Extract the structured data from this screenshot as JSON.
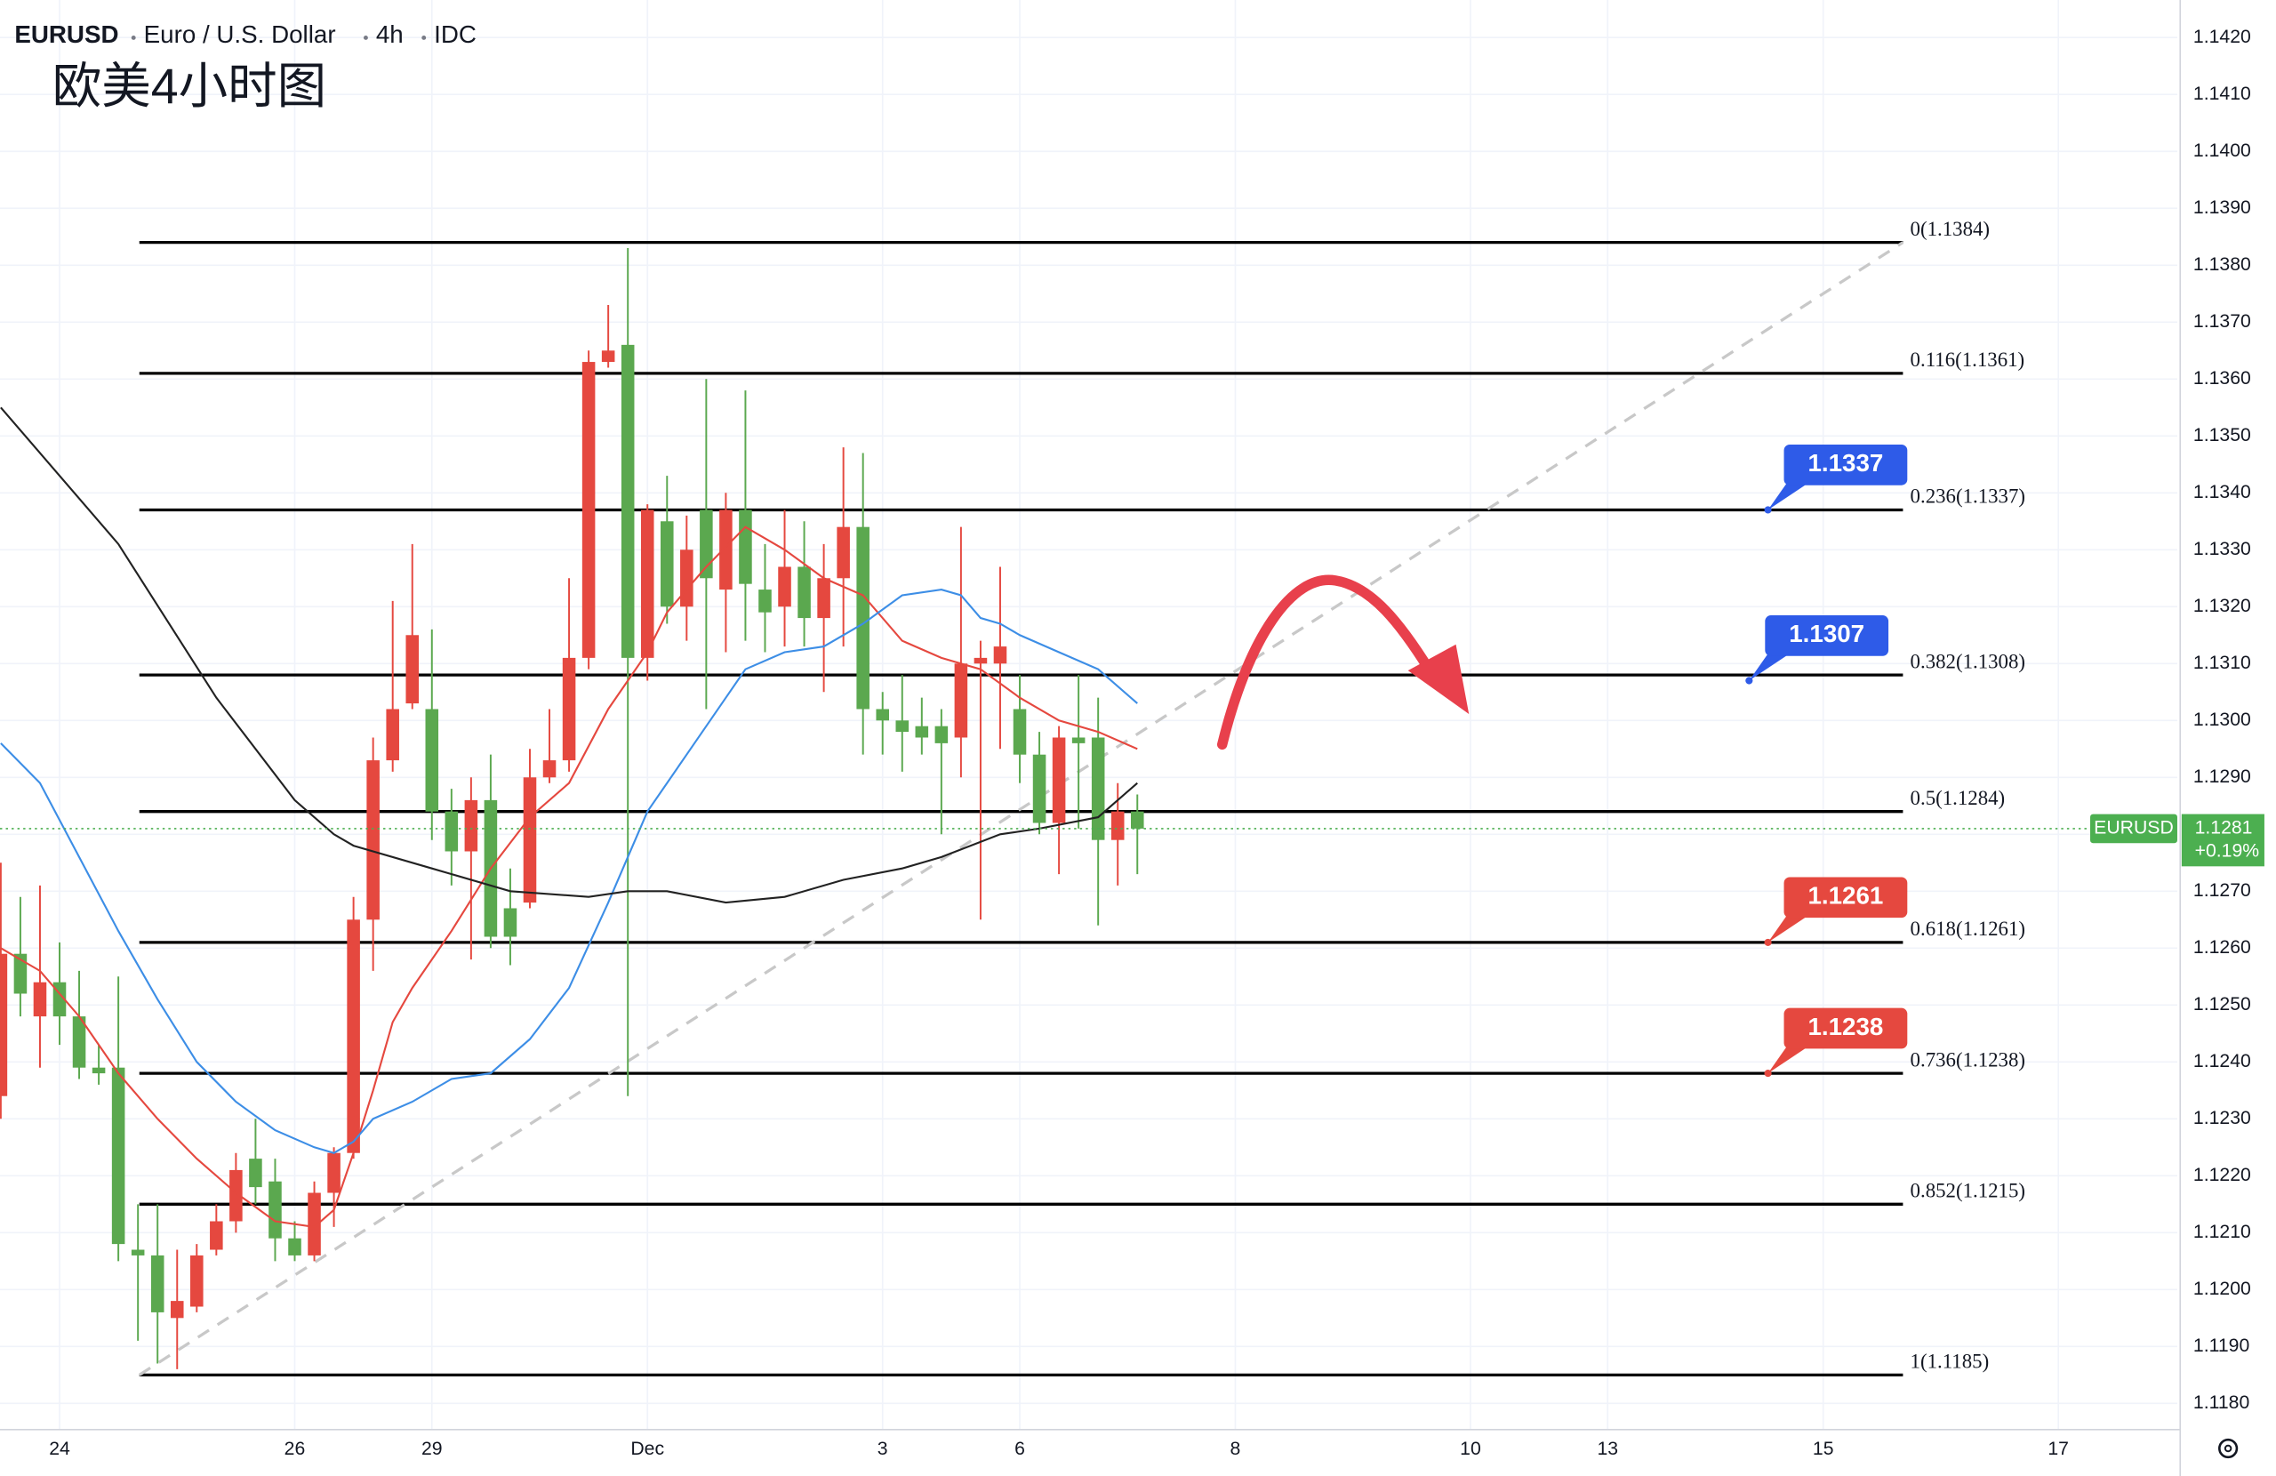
{
  "header": {
    "symbol": "EURUSD",
    "description": "Euro / U.S. Dollar",
    "interval": "4h",
    "source": "IDC",
    "title": "欧美4小时图"
  },
  "chart_data": {
    "type": "candlestick",
    "x": [
      -3,
      -2,
      -1,
      0,
      1,
      2,
      3,
      4,
      5,
      6,
      7,
      8,
      9,
      10,
      11,
      12,
      13,
      14,
      15,
      16,
      17,
      18,
      19,
      20,
      21,
      22,
      23,
      24,
      25,
      26,
      27,
      28,
      29,
      30,
      31,
      32,
      33,
      34,
      35,
      36,
      37,
      38,
      39,
      40,
      41,
      42,
      43,
      44,
      45,
      46,
      47,
      48,
      49,
      50,
      51,
      52,
      53,
      54,
      55
    ],
    "open": [
      1.1234,
      1.1259,
      1.1248,
      1.1254,
      1.1248,
      1.1239,
      1.1239,
      1.1207,
      1.1206,
      1.1195,
      1.1197,
      1.1207,
      1.1212,
      1.1223,
      1.1219,
      1.1209,
      1.1206,
      1.1217,
      1.1224,
      1.1265,
      1.1293,
      1.1303,
      1.1302,
      1.1284,
      1.1277,
      1.1286,
      1.1267,
      1.1268,
      1.129,
      1.1293,
      1.1311,
      1.1363,
      1.1366,
      1.1311,
      1.1335,
      1.132,
      1.1337,
      1.1323,
      1.1337,
      1.1323,
      1.132,
      1.1327,
      1.1318,
      1.1325,
      1.1334,
      1.1302,
      1.13,
      1.1299,
      1.1299,
      1.1297,
      1.131,
      1.131,
      1.1302,
      1.1294,
      1.1282,
      1.1297,
      1.1297,
      1.1279,
      1.1284
    ],
    "high": [
      1.1275,
      1.1269,
      1.1271,
      1.1261,
      1.1256,
      1.1243,
      1.1255,
      1.1215,
      1.1215,
      1.1207,
      1.1208,
      1.1215,
      1.1224,
      1.123,
      1.1223,
      1.1212,
      1.1219,
      1.1225,
      1.1269,
      1.1297,
      1.1321,
      1.1331,
      1.1316,
      1.1288,
      1.129,
      1.1294,
      1.1274,
      1.1295,
      1.1302,
      1.1325,
      1.1365,
      1.1373,
      1.1383,
      1.1338,
      1.1343,
      1.1336,
      1.136,
      1.134,
      1.1358,
      1.1331,
      1.1337,
      1.1335,
      1.1331,
      1.1348,
      1.1347,
      1.1305,
      1.1308,
      1.1304,
      1.1302,
      1.1334,
      1.1314,
      1.1327,
      1.1308,
      1.1298,
      1.1299,
      1.1308,
      1.1304,
      1.1289,
      1.1287
    ],
    "low": [
      1.123,
      1.1248,
      1.1239,
      1.1243,
      1.1237,
      1.1236,
      1.1205,
      1.1191,
      1.1187,
      1.1186,
      1.1196,
      1.1206,
      1.121,
      1.1215,
      1.1205,
      1.1205,
      1.1205,
      1.1211,
      1.1223,
      1.1256,
      1.1291,
      1.1302,
      1.1279,
      1.1271,
      1.1258,
      1.126,
      1.1257,
      1.1267,
      1.1289,
      1.1291,
      1.1309,
      1.1362,
      1.1234,
      1.1307,
      1.1317,
      1.1314,
      1.1302,
      1.1312,
      1.1314,
      1.1312,
      1.1313,
      1.1313,
      1.1305,
      1.1313,
      1.1294,
      1.1294,
      1.1291,
      1.1294,
      1.128,
      1.129,
      1.1265,
      1.1295,
      1.1289,
      1.128,
      1.1273,
      1.1281,
      1.1264,
      1.1271,
      1.1273
    ],
    "close": [
      1.1259,
      1.1252,
      1.1254,
      1.1248,
      1.1239,
      1.1238,
      1.1208,
      1.1206,
      1.1196,
      1.1198,
      1.1206,
      1.1212,
      1.1221,
      1.1218,
      1.1209,
      1.1206,
      1.1217,
      1.1224,
      1.1265,
      1.1293,
      1.1302,
      1.1315,
      1.1284,
      1.1277,
      1.1286,
      1.1262,
      1.1262,
      1.129,
      1.1293,
      1.1311,
      1.1363,
      1.1365,
      1.1311,
      1.1337,
      1.132,
      1.133,
      1.1325,
      1.1337,
      1.1324,
      1.1319,
      1.1327,
      1.1318,
      1.1325,
      1.1334,
      1.1302,
      1.13,
      1.1298,
      1.1297,
      1.1296,
      1.131,
      1.1311,
      1.1313,
      1.1294,
      1.1282,
      1.1297,
      1.1296,
      1.1279,
      1.1284,
      1.1281
    ],
    "up_color": "#e5483f",
    "down_color": "#5ba84f",
    "series": [
      {
        "color": "#e5483f",
        "x": [
          -3,
          -1,
          1,
          3,
          5,
          7,
          9,
          11,
          13,
          14,
          15,
          16,
          17,
          18,
          20,
          22,
          24,
          26,
          28,
          29,
          30,
          31,
          33,
          35,
          37,
          39,
          41,
          43,
          45,
          47,
          49,
          51,
          53,
          55
        ],
        "values": [
          1.126,
          1.1256,
          1.1248,
          1.1238,
          1.123,
          1.1223,
          1.1217,
          1.1212,
          1.1211,
          1.1214,
          1.1224,
          1.1235,
          1.1247,
          1.1253,
          1.1263,
          1.1274,
          1.1283,
          1.1289,
          1.1302,
          1.1307,
          1.1312,
          1.1319,
          1.1327,
          1.1334,
          1.133,
          1.1325,
          1.1322,
          1.1314,
          1.1311,
          1.1309,
          1.1304,
          1.13,
          1.1298,
          1.1295
        ]
      },
      {
        "color": "#3d8ee6",
        "x": [
          -3,
          -1,
          1,
          3,
          5,
          7,
          9,
          11,
          13,
          14,
          15,
          16,
          18,
          20,
          22,
          24,
          26,
          28,
          30,
          32,
          34,
          35,
          37,
          39,
          41,
          43,
          45,
          46,
          47,
          48,
          49,
          51,
          53,
          55
        ],
        "values": [
          1.1296,
          1.1289,
          1.1276,
          1.1263,
          1.1251,
          1.124,
          1.1233,
          1.1228,
          1.1225,
          1.1224,
          1.1226,
          1.123,
          1.1233,
          1.1237,
          1.1238,
          1.1244,
          1.1253,
          1.1268,
          1.1284,
          1.1294,
          1.1304,
          1.1309,
          1.1312,
          1.1313,
          1.1317,
          1.1322,
          1.1323,
          1.1322,
          1.1318,
          1.1317,
          1.1315,
          1.1312,
          1.1309,
          1.1303
        ]
      },
      {
        "color": "#222222",
        "x": [
          -3,
          3,
          8,
          12,
          14,
          15,
          19,
          23,
          27,
          29,
          31,
          34,
          37,
          40,
          43,
          45,
          48,
          50,
          53,
          55
        ],
        "values": [
          1.1355,
          1.1331,
          1.1304,
          1.1286,
          1.128,
          1.1278,
          1.1274,
          1.127,
          1.1269,
          1.127,
          1.127,
          1.1268,
          1.1269,
          1.1272,
          1.1274,
          1.1276,
          1.128,
          1.1281,
          1.1283,
          1.1289
        ]
      }
    ],
    "fib_levels": [
      {
        "label": "0(1.1384)",
        "value": 1.1384
      },
      {
        "label": "0.116(1.1361)",
        "value": 1.1361
      },
      {
        "label": "0.236(1.1337)",
        "value": 1.1337
      },
      {
        "label": "0.382(1.1308)",
        "value": 1.1308
      },
      {
        "label": "0.5(1.1284)",
        "value": 1.1284
      },
      {
        "label": "0.618(1.1261)",
        "value": 1.1261
      },
      {
        "label": "0.736(1.1238)",
        "value": 1.1238
      },
      {
        "label": "0.852(1.1215)",
        "value": 1.1215
      },
      {
        "label": "1(1.1185)",
        "value": 1.1185
      }
    ],
    "fib_color": "#000000",
    "callouts": [
      {
        "value": 1.1337,
        "color": "#2e5be8"
      },
      {
        "value": 1.1307,
        "color": "#2e5be8"
      },
      {
        "value": 1.1261,
        "color": "#e5483f"
      },
      {
        "value": 1.1238,
        "color": "#e5483f"
      }
    ],
    "last_price": {
      "symbol": "EURUSD",
      "value": 1.1281,
      "change": "+0.19%",
      "color": "#4caf50"
    },
    "xlim": [
      -3.04,
      108.07
    ],
    "xticks": [
      {
        "value": 0,
        "label": "24"
      },
      {
        "value": 12,
        "label": "26"
      },
      {
        "value": 19,
        "label": "29"
      },
      {
        "value": 30,
        "label": "Dec"
      },
      {
        "value": 42,
        "label": "3"
      },
      {
        "value": 49,
        "label": "6"
      },
      {
        "value": 60,
        "label": "8"
      },
      {
        "value": 72,
        "label": "10"
      },
      {
        "value": 79,
        "label": "13"
      },
      {
        "value": 90,
        "label": "15"
      },
      {
        "value": 102,
        "label": "17"
      }
    ],
    "ylim": [
      1.11754,
      1.14266
    ],
    "yticks": [
      {
        "value": 1.118,
        "label": "1.1180"
      },
      {
        "value": 1.119,
        "label": "1.1190"
      },
      {
        "value": 1.12,
        "label": "1.1200"
      },
      {
        "value": 1.121,
        "label": "1.1210"
      },
      {
        "value": 1.122,
        "label": "1.1220"
      },
      {
        "value": 1.123,
        "label": "1.1230"
      },
      {
        "value": 1.124,
        "label": "1.1240"
      },
      {
        "value": 1.125,
        "label": "1.1250"
      },
      {
        "value": 1.126,
        "label": "1.1260"
      },
      {
        "value": 1.127,
        "label": "1.1270"
      },
      {
        "value": 1.128,
        "label": "1.1280"
      },
      {
        "value": 1.129,
        "label": "1.1290"
      },
      {
        "value": 1.13,
        "label": "1.1300"
      },
      {
        "value": 1.131,
        "label": "1.1310"
      },
      {
        "value": 1.132,
        "label": "1.1320"
      },
      {
        "value": 1.133,
        "label": "1.1330"
      },
      {
        "value": 1.134,
        "label": "1.1340"
      },
      {
        "value": 1.135,
        "label": "1.1350"
      },
      {
        "value": 1.136,
        "label": "1.1360"
      },
      {
        "value": 1.137,
        "label": "1.1370"
      },
      {
        "value": 1.138,
        "label": "1.1380"
      },
      {
        "value": 1.139,
        "label": "1.1390"
      },
      {
        "value": 1.14,
        "label": "1.1400"
      },
      {
        "value": 1.141,
        "label": "1.1410"
      },
      {
        "value": 1.142,
        "label": "1.1420"
      }
    ],
    "grid": true
  }
}
